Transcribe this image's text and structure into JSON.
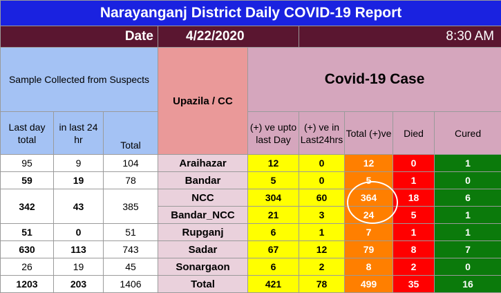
{
  "title": "Narayanganj District Daily COVID-19 Report",
  "date_label": "Date",
  "date_value": "4/22/2020",
  "time_value": "8:30 AM",
  "headers": {
    "sample": "Sample Collected from Suspects",
    "upazila": "Upazila / CC",
    "covid": "Covid-19 Case",
    "last_day_total": "Last day total",
    "in_last_24": "in last 24 hr",
    "total": "Total",
    "positive_upto_last_day": "(+) ve upto last Day",
    "positive_last_24": "(+) ve in Last24hrs",
    "total_positive": "Total (+)ve",
    "died": "Died",
    "cured": "Cured"
  },
  "rows": [
    {
      "last_day": "95",
      "last24": "9",
      "total": "104",
      "upazila": "Araihazar",
      "pos_upto": "12",
      "pos_24": "0",
      "pos_total": "12",
      "died": "0",
      "cured": "1"
    },
    {
      "last_day": "59",
      "last24": "19",
      "total": "78",
      "upazila": "Bandar",
      "pos_upto": "5",
      "pos_24": "0",
      "pos_total": "5",
      "died": "1",
      "cured": "0"
    },
    {
      "last_day": "342",
      "last24": "43",
      "total": "385",
      "upazila": "NCC",
      "pos_upto": "304",
      "pos_24": "60",
      "pos_total": "364",
      "died": "18",
      "cured": "6"
    },
    {
      "upazila": "Bandar_NCC",
      "pos_upto": "21",
      "pos_24": "3",
      "pos_total": "24",
      "died": "5",
      "cured": "1"
    },
    {
      "last_day": "51",
      "last24": "0",
      "total": "51",
      "upazila": "Rupganj",
      "pos_upto": "6",
      "pos_24": "1",
      "pos_total": "7",
      "died": "1",
      "cured": "1"
    },
    {
      "last_day": "630",
      "last24": "113",
      "total": "743",
      "upazila": "Sadar",
      "pos_upto": "67",
      "pos_24": "12",
      "pos_total": "79",
      "died": "8",
      "cured": "7"
    },
    {
      "last_day": "26",
      "last24": "19",
      "total": "45",
      "upazila": "Sonargaon",
      "pos_upto": "6",
      "pos_24": "2",
      "pos_total": "8",
      "died": "2",
      "cured": "0"
    },
    {
      "last_day": "1203",
      "last24": "203",
      "total": "1406",
      "upazila": "Total",
      "pos_upto": "421",
      "pos_24": "78",
      "pos_total": "499",
      "died": "35",
      "cured": "16"
    }
  ],
  "colors": {
    "title_bg": "#1a22e0",
    "date_bg": "#5a1630",
    "sample_bg": "#a4c2f4",
    "upazila_head_bg": "#ea9999",
    "covid_bg": "#d5a6bd",
    "upazila_cell_bg": "#ead1dc",
    "positive_bg": "#ffff00",
    "total_positive_bg": "#ff7f00",
    "died_bg": "#ff0000",
    "cured_bg": "#0b7a0b"
  }
}
